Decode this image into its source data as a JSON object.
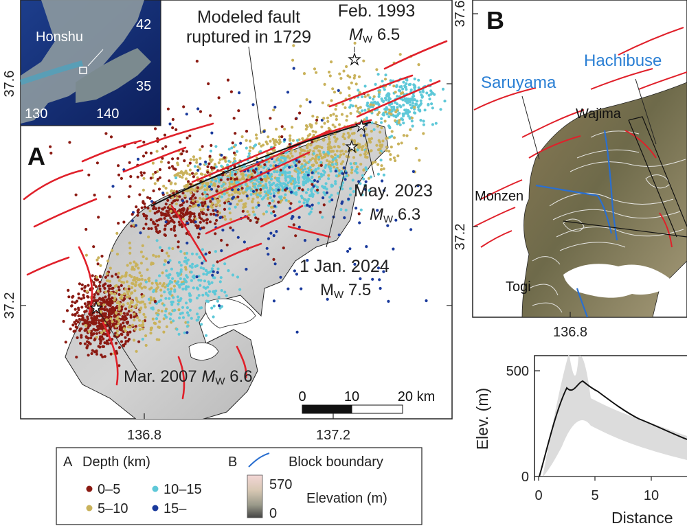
{
  "panel_a": {
    "letter": "A",
    "inset": {
      "label": "Honshu",
      "lat_ticks": [
        "42",
        "35"
      ],
      "lon_ticks": [
        "130",
        "140"
      ]
    },
    "annotations": {
      "fault_line1": "Modeled fault",
      "fault_line2": "ruptured in 1729",
      "feb1993_line1": "Feb. 1993",
      "feb1993_m": "M",
      "feb1993_sub": "W",
      "feb1993_val": " 6.5",
      "may2023_line1": "May. 2023",
      "may2023_m": "M",
      "may2023_sub": "W",
      "may2023_val": " 6.3",
      "jan2024_line1": "1 Jan. 2024",
      "jan2024_m": "M",
      "jan2024_sub": "W",
      "jan2024_val": " 7.5",
      "mar2007_line1": "Mar. 2007 ",
      "mar2007_m": "M",
      "mar2007_sub": "W",
      "mar2007_val": " 6.6"
    },
    "lat_ticks": [
      "37.6",
      "37.2"
    ],
    "lon_ticks": [
      "136.8",
      "137.2"
    ],
    "scalebar": [
      "0",
      "10",
      "20 km"
    ]
  },
  "panel_b": {
    "letter": "B",
    "places": {
      "saruyama": "Saruyama",
      "hachibuse": "Hachibuse",
      "wajima": "Wajima",
      "monzen": "Monzen",
      "togi": "Togi"
    },
    "lat_ticks": [
      "37.6",
      "37.2"
    ],
    "lon_ticks": [
      "136.8"
    ]
  },
  "profile": {
    "ylabel": "Elev. (m)",
    "xlabel": "Distance",
    "y_ticks": [
      "500",
      "0"
    ],
    "x_ticks": [
      "0",
      "5",
      "10"
    ]
  },
  "legend": {
    "a_letter": "A",
    "depth_title": "Depth (km)",
    "depth_items": [
      {
        "label": "0–5",
        "color": "#8b1a12"
      },
      {
        "label": "5–10",
        "color": "#c9b25b"
      },
      {
        "label": "10–15",
        "color": "#5ec8d8"
      },
      {
        "label": "15–",
        "color": "#1a3a9c"
      }
    ],
    "b_letter": "B",
    "block_boundary": "Block boundary",
    "elev_max": "570",
    "elev_min": "0",
    "elev_title": "Elevation (m)"
  },
  "colors": {
    "fault": "#e0202a",
    "block_boundary": "#2a6fd0",
    "label_blue": "#2a7fd4"
  }
}
